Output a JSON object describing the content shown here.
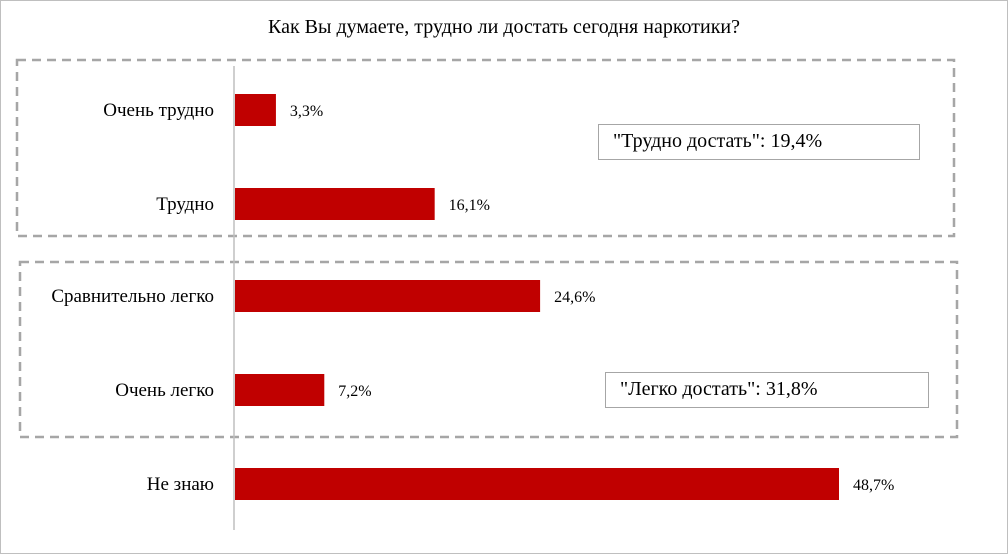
{
  "chart_data": {
    "type": "bar",
    "orientation": "horizontal",
    "title": "Как Вы думаете, трудно ли достать сегодня наркотики?",
    "categories": [
      "Очень трудно",
      "Трудно",
      "Сравнительно легко",
      "Очень легко",
      "Не знаю"
    ],
    "values": [
      3.3,
      16.1,
      24.6,
      7.2,
      48.7
    ],
    "value_labels": [
      "3,3%",
      "16,1%",
      "24,6%",
      "7,2%",
      "48,7%"
    ],
    "unit": "%",
    "bar_color": "#c00000",
    "groups": [
      {
        "label": "\"Трудно достать\": 19,4%",
        "categories": [
          "Очень трудно",
          "Трудно"
        ]
      },
      {
        "label": "\"Легко достать\": 31,8%",
        "categories": [
          "Сравнительно легко",
          "Очень легко"
        ]
      }
    ],
    "legend": "none",
    "grid": false
  }
}
